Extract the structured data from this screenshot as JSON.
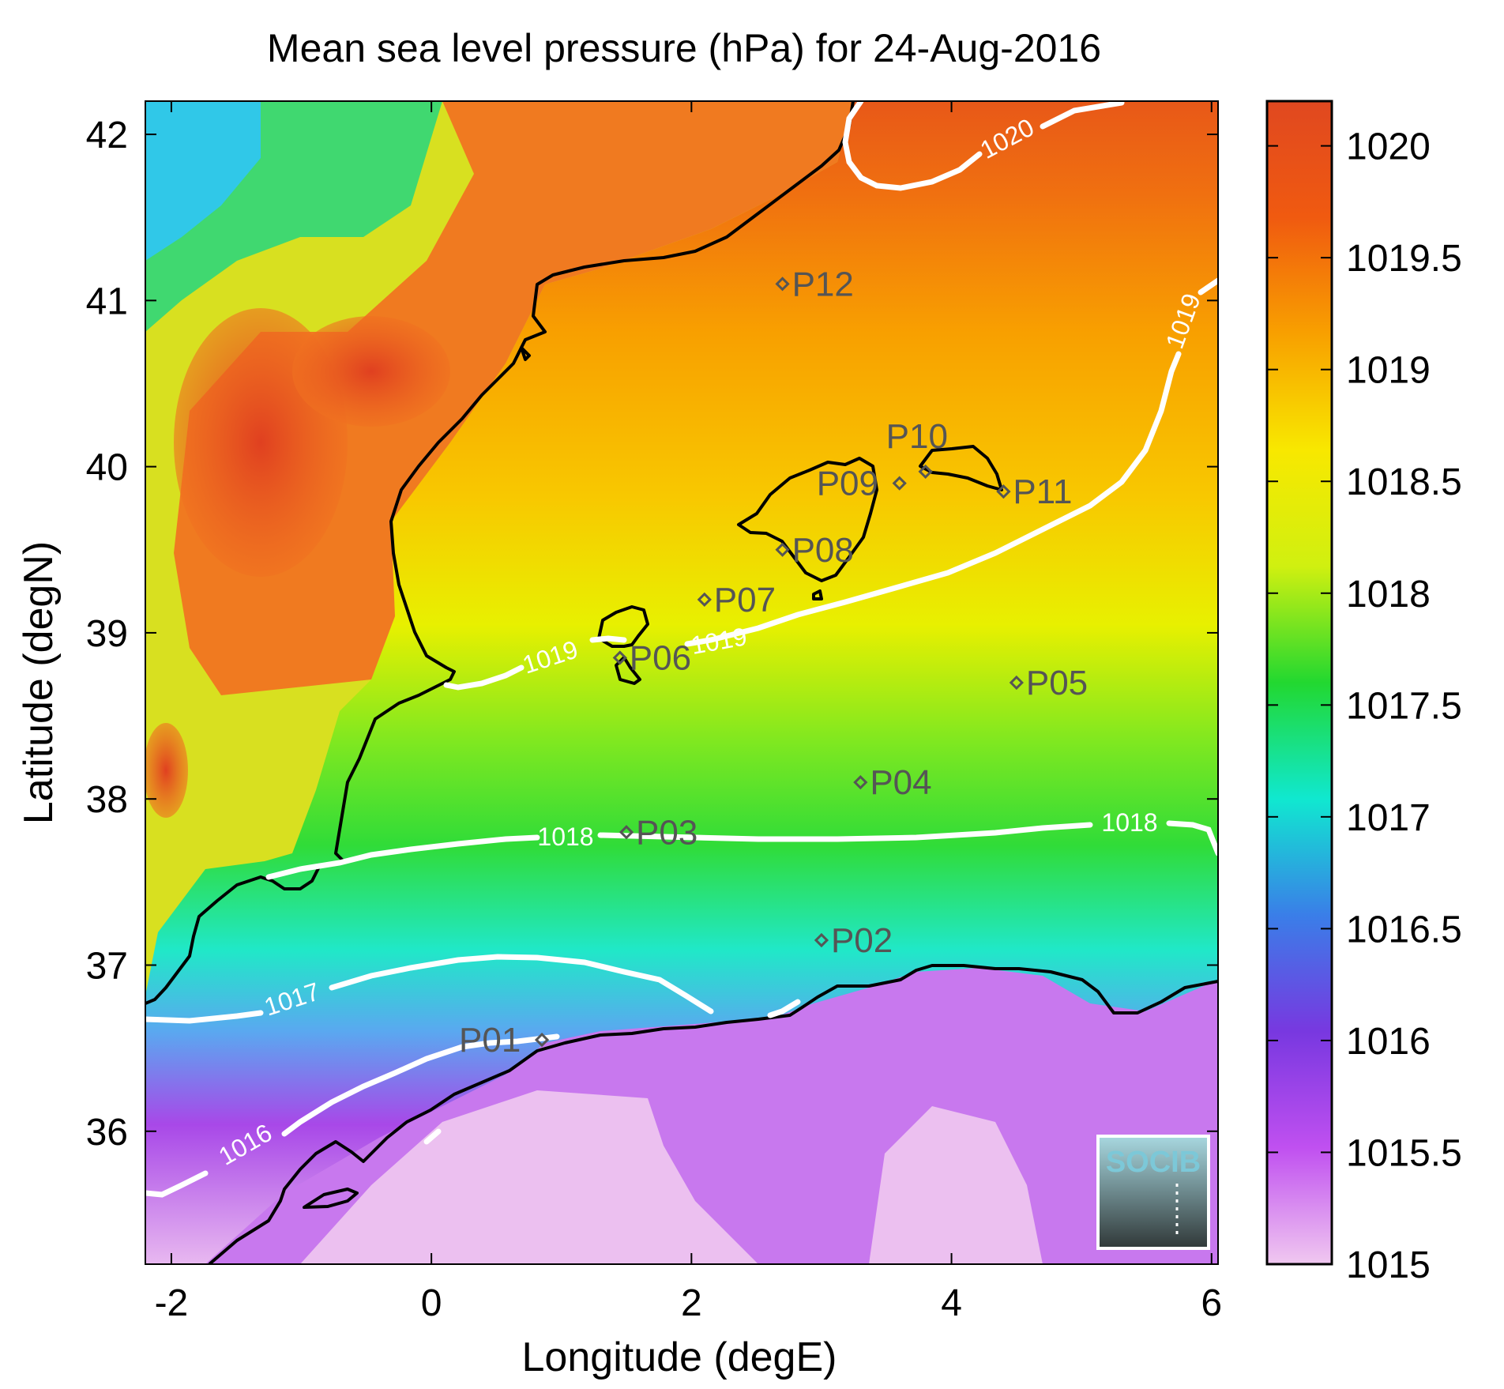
{
  "title": "Mean sea level pressure (hPa) for 24-Aug-2016",
  "xlabel": "Longitude (degE)",
  "ylabel": "Latitude (degN)",
  "x_ticks": [
    "-2",
    "0",
    "2",
    "4",
    "6"
  ],
  "y_ticks": [
    "42",
    "41",
    "40",
    "39",
    "38",
    "37",
    "36"
  ],
  "colorbar": {
    "ticks": [
      "1020",
      "1019.5",
      "1019",
      "1018.5",
      "1018",
      "1017.5",
      "1017",
      "1016.5",
      "1016",
      "1015.5",
      "1015"
    ],
    "range": [
      1015,
      1020.2
    ],
    "colors": [
      "#f0c8f0",
      "#c050f0",
      "#7838e0",
      "#3a7ee8",
      "#10e8d0",
      "#22d830",
      "#d0f010",
      "#f8e800",
      "#f8a000",
      "#f05a10",
      "#e04820"
    ]
  },
  "contour_labels": {
    "c1020": "1020",
    "c1019_east": "1019",
    "c1019_a": "1019",
    "c1019_b": "1019",
    "c1018_a": "1018",
    "c1018_b": "1018",
    "c1017": "1017",
    "c1016": "1016"
  },
  "stations": [
    {
      "id": "P01",
      "lon": 0.85,
      "lat": 36.55
    },
    {
      "id": "P02",
      "lon": 3.0,
      "lat": 37.15
    },
    {
      "id": "P03",
      "lon": 1.5,
      "lat": 37.8
    },
    {
      "id": "P04",
      "lon": 3.3,
      "lat": 38.1
    },
    {
      "id": "P05",
      "lon": 4.5,
      "lat": 38.7
    },
    {
      "id": "P06",
      "lon": 1.45,
      "lat": 38.85
    },
    {
      "id": "P07",
      "lon": 2.1,
      "lat": 39.2
    },
    {
      "id": "P08",
      "lon": 2.7,
      "lat": 39.5
    },
    {
      "id": "P09",
      "lon": 3.6,
      "lat": 39.9
    },
    {
      "id": "P10",
      "lon": 3.8,
      "lat": 39.97
    },
    {
      "id": "P11",
      "lon": 4.4,
      "lat": 39.85
    },
    {
      "id": "P12",
      "lon": 2.7,
      "lat": 41.1
    }
  ],
  "logo": {
    "text": "SOCIB"
  },
  "colors": {
    "contour": "#ffffff",
    "coast": "#000000",
    "station": "#555555"
  }
}
